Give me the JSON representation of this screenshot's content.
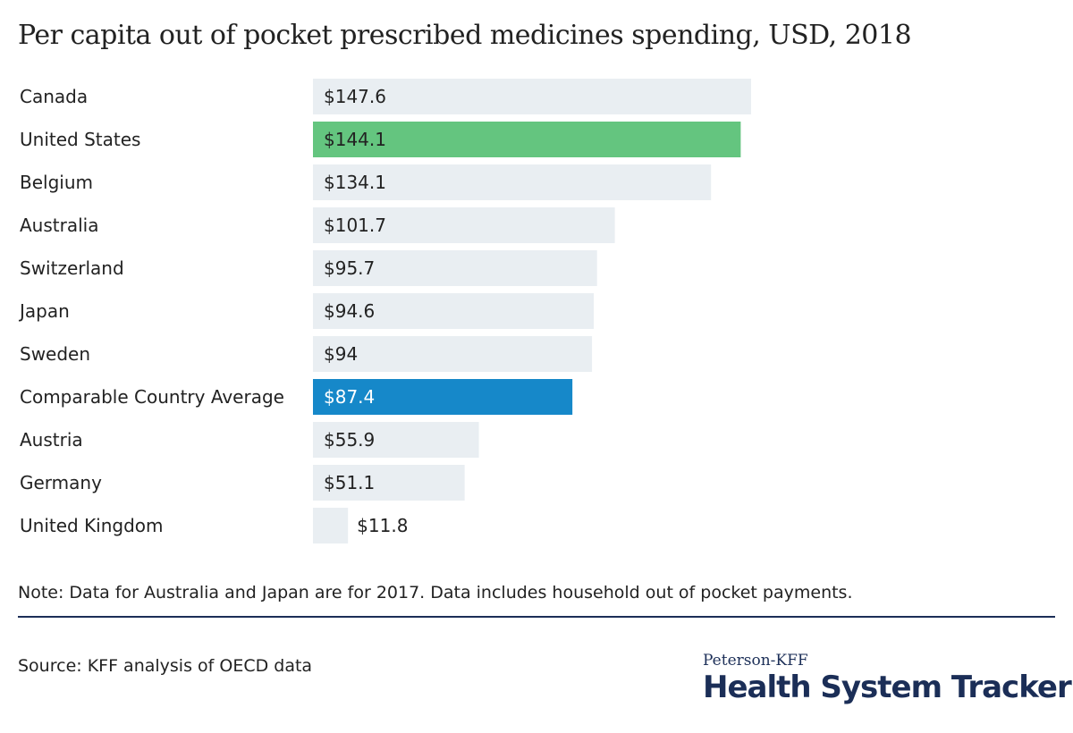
{
  "colors": {
    "default_bar": "#e9eef2",
    "highlight_us": "#64c57f",
    "highlight_avg": "#1688c9",
    "text": "#222222",
    "navy": "#1b2e57"
  },
  "chart_data": {
    "type": "bar",
    "orientation": "horizontal",
    "title": "Per capita out of pocket prescribed medicines spending, USD, 2018",
    "categories": [
      "Canada",
      "United States",
      "Belgium",
      "Australia",
      "Switzerland",
      "Japan",
      "Sweden",
      "Comparable Country Average",
      "Austria",
      "Germany",
      "United Kingdom"
    ],
    "values": [
      147.6,
      144.1,
      134.1,
      101.7,
      95.7,
      94.6,
      94,
      87.4,
      55.9,
      51.1,
      11.8
    ],
    "value_labels": [
      "$147.6",
      "$144.1",
      "$134.1",
      "$101.7",
      "$95.7",
      "$94.6",
      "$94",
      "$87.4",
      "$55.9",
      "$51.1",
      "$11.8"
    ],
    "highlight": {
      "United States": "#64c57f",
      "Comparable Country Average": "#1688c9"
    },
    "xlim": [
      0,
      147.6
    ],
    "grid": false,
    "legend": "none"
  },
  "footer": {
    "note": "Note: Data for Australia and Japan are for 2017. Data includes household out of pocket payments.",
    "source": "Source: KFF analysis of OECD data"
  },
  "brand": {
    "small": "Peterson-KFF",
    "large": "Health System Tracker"
  }
}
